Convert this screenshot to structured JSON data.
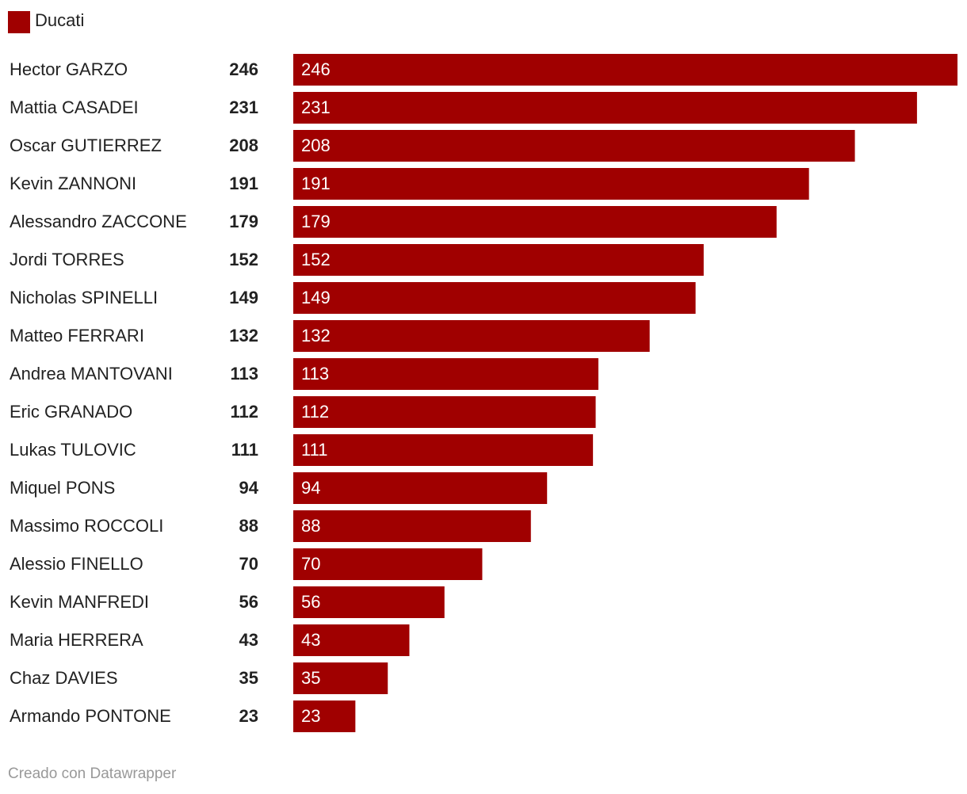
{
  "chart_data": {
    "type": "bar",
    "categories": [
      "Hector GARZO",
      "Mattia CASADEI",
      "Oscar GUTIERREZ",
      "Kevin ZANNONI",
      "Alessandro ZACCONE",
      "Jordi TORRES",
      "Nicholas SPINELLI",
      "Matteo FERRARI",
      "Andrea MANTOVANI",
      "Eric GRANADO",
      "Lukas TULOVIC",
      "Miquel PONS",
      "Massimo ROCCOLI",
      "Alessio FINELLO",
      "Kevin MANFREDI",
      "Maria HERRERA",
      "Chaz DAVIES",
      "Armando PONTONE"
    ],
    "series": [
      {
        "name": "Ducati",
        "color": "#a00000",
        "values": [
          246,
          231,
          208,
          191,
          179,
          152,
          149,
          132,
          113,
          112,
          111,
          94,
          88,
          70,
          56,
          43,
          35,
          23
        ]
      }
    ],
    "credit": "Creado con Datawrapper"
  }
}
